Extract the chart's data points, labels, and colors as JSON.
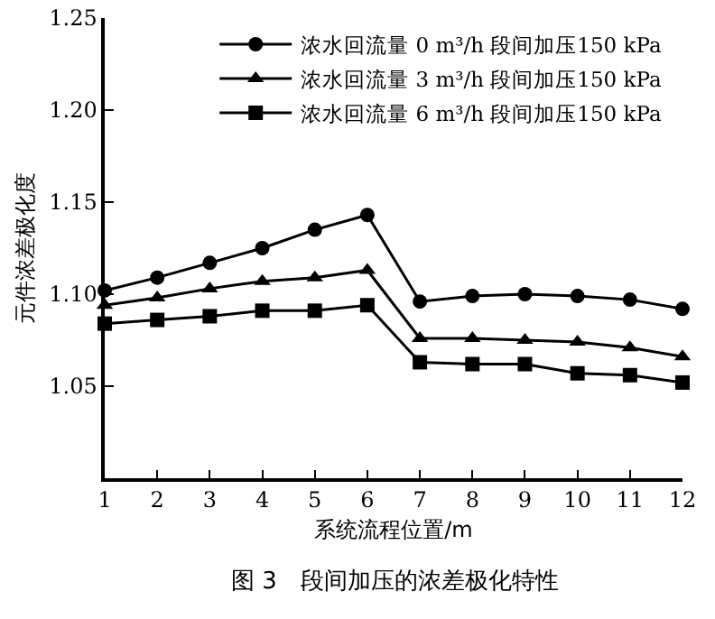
{
  "chart_data": {
    "type": "line",
    "xlabel": "系统流程位置/m",
    "ylabel": "元件浓差极化度",
    "x": [
      1,
      2,
      3,
      4,
      5,
      6,
      7,
      8,
      9,
      10,
      11,
      12
    ],
    "series": [
      {
        "name": "浓水回流量 0 m³/h 段间加压150 kPa",
        "color": "#000000",
        "marker": "circle",
        "values": [
          1.102,
          1.109,
          1.117,
          1.125,
          1.135,
          1.143,
          1.096,
          1.099,
          1.1,
          1.099,
          1.097,
          1.092
        ]
      },
      {
        "name": "浓水回流量 3 m³/h 段间加压150 kPa",
        "color": "#000000",
        "marker": "triangle",
        "values": [
          1.094,
          1.098,
          1.103,
          1.107,
          1.109,
          1.113,
          1.076,
          1.076,
          1.075,
          1.074,
          1.071,
          1.066
        ]
      },
      {
        "name": "浓水回流量 6 m³/h 段间加压150 kPa",
        "color": "#000000",
        "marker": "square",
        "values": [
          1.084,
          1.086,
          1.088,
          1.091,
          1.091,
          1.094,
          1.063,
          1.062,
          1.062,
          1.057,
          1.056,
          1.052
        ]
      }
    ],
    "xlim": [
      1,
      12
    ],
    "xticks": [
      1,
      2,
      3,
      4,
      5,
      6,
      7,
      8,
      9,
      10,
      11,
      12
    ],
    "ylim": [
      1.0,
      1.25
    ],
    "yticks": [
      {
        "value": 1.05,
        "label": "1.05"
      },
      {
        "value": 1.1,
        "label": "1.10"
      },
      {
        "value": 1.15,
        "label": "1.15"
      },
      {
        "value": 1.2,
        "label": "1.20"
      },
      {
        "value": 1.25,
        "label": "1.25"
      }
    ],
    "grid": false,
    "legend": "top right",
    "line_style": "solid",
    "annotations": [
      "图 3　段间加压的浓差极化特性"
    ]
  }
}
